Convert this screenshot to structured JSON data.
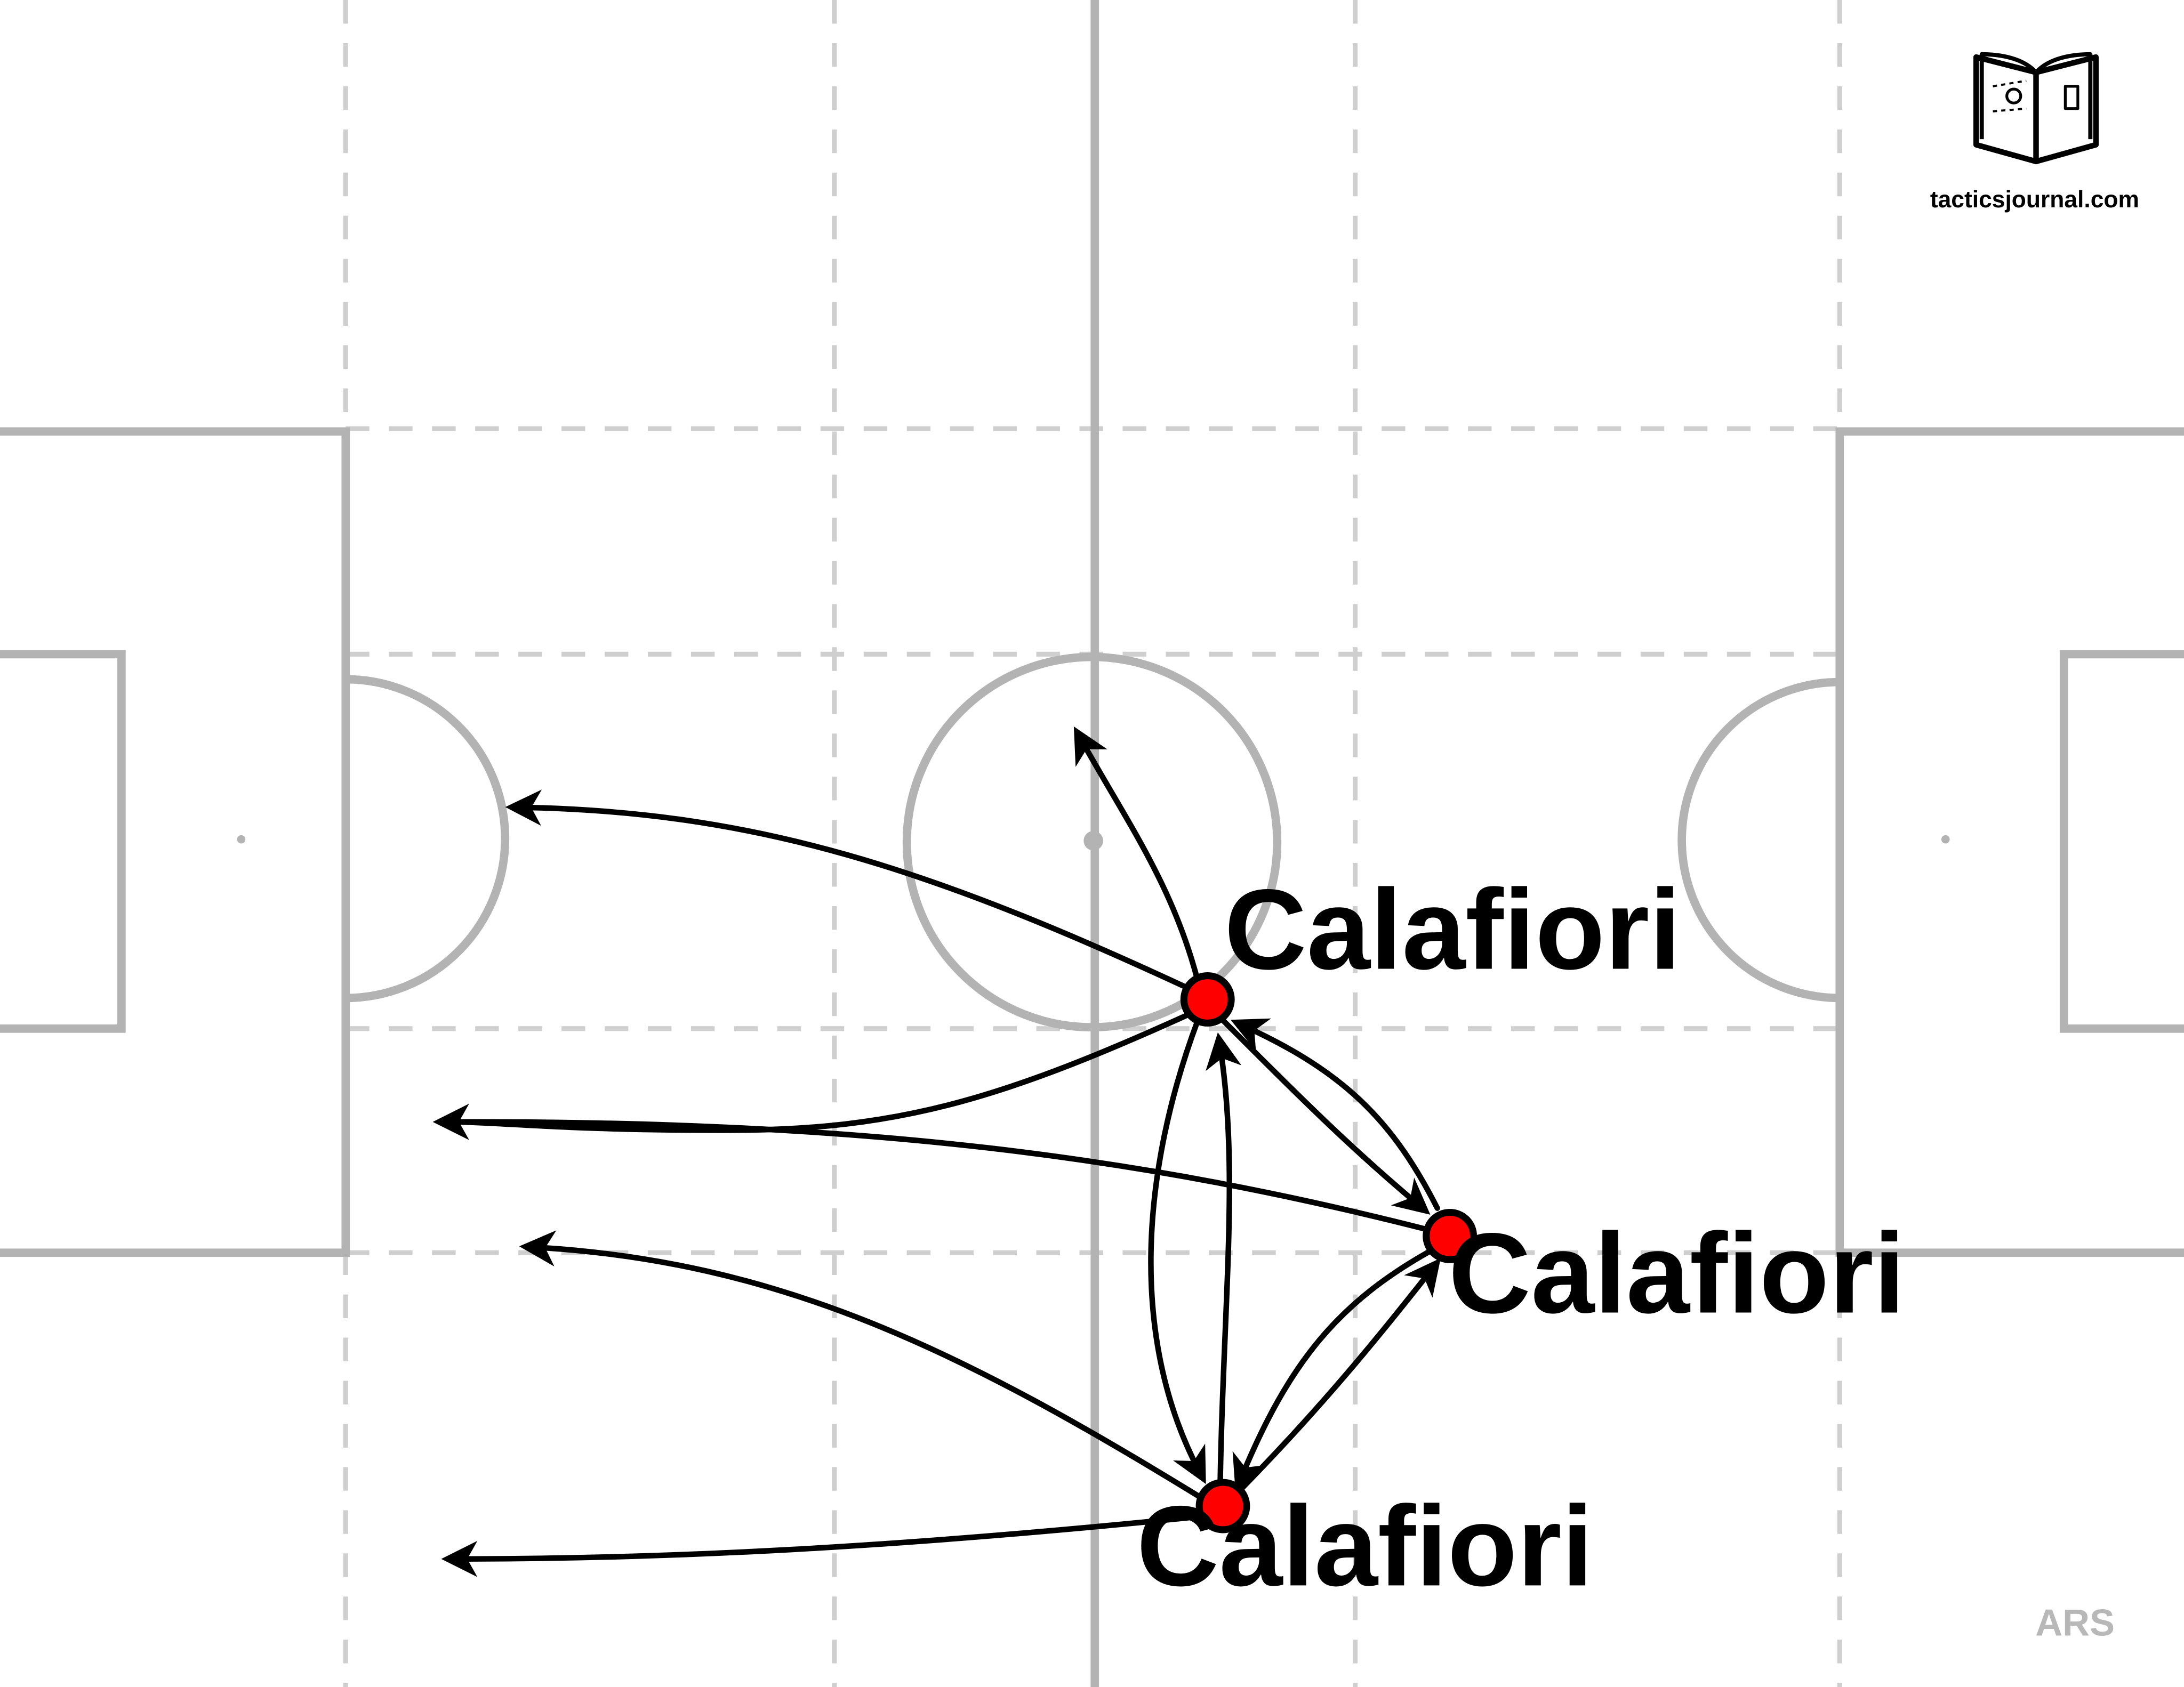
{
  "brand": {
    "website": "tacticsjournal.com",
    "logo_icon": "open-book-pitch-icon"
  },
  "team": {
    "code": "ARS"
  },
  "players": [
    {
      "id": "p1",
      "name": "Calafiori"
    },
    {
      "id": "p2",
      "name": "Calafiori"
    },
    {
      "id": "p3",
      "name": "Calafiori"
    }
  ],
  "colors": {
    "pitch_lines": "#b3b3b3",
    "zone_lines": "#cfcfcf",
    "player_fill": "#ff0000",
    "pass_arrows": "#000000",
    "team_text": "#b8b8b8"
  }
}
